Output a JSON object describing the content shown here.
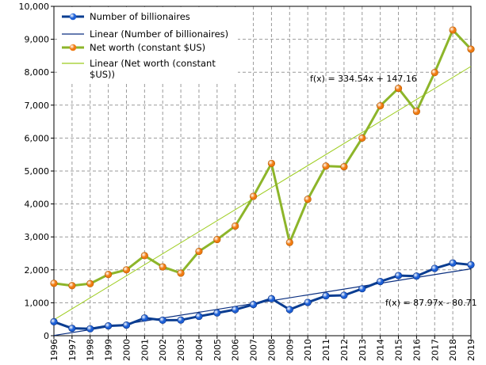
{
  "chart_data": {
    "type": "line",
    "x": [
      "1996",
      "1997",
      "1998",
      "1999",
      "2000",
      "2001",
      "2002",
      "2003",
      "2004",
      "2005",
      "2006",
      "2007",
      "2008",
      "2009",
      "2010",
      "2011",
      "2012",
      "2013",
      "2014",
      "2015",
      "2016",
      "2017",
      "2018",
      "2019"
    ],
    "ylim": [
      0,
      10000
    ],
    "yticks": [
      0,
      1000,
      2000,
      3000,
      4000,
      5000,
      6000,
      7000,
      8000,
      9000,
      10000
    ],
    "ytick_labels": [
      "0",
      "1,000",
      "2,000",
      "3,000",
      "4,000",
      "5,000",
      "6,000",
      "7,000",
      "8,000",
      "9,000",
      "10,000"
    ],
    "grid": "dashed",
    "legend_position": "top-left",
    "series": [
      {
        "name": "Number of billionaires",
        "color": "#0a3d91",
        "marker_color": "#1c5fd6",
        "values": [
          423,
          224,
          209,
          298,
          322,
          538,
          471,
          476,
          587,
          691,
          793,
          946,
          1125,
          793,
          1011,
          1210,
          1226,
          1426,
          1645,
          1826,
          1810,
          2043,
          2208,
          2153
        ]
      },
      {
        "name": "Net worth (constant $US)",
        "color": "#8db52a",
        "marker_color": "#f07a10",
        "values": [
          1590,
          1520,
          1580,
          1860,
          2000,
          2430,
          2090,
          1900,
          2560,
          2920,
          3330,
          4230,
          5230,
          2830,
          4140,
          5150,
          5130,
          6000,
          6980,
          7510,
          6810,
          7990,
          9280,
          8700
        ]
      }
    ],
    "trendlines": [
      {
        "name": "Linear (Number of billionaires)",
        "color": "#0a2f80",
        "slope": 87.97,
        "intercept": -80.71,
        "formula": "f(x) = 87.97x - 80.71"
      },
      {
        "name": "Linear (Net worth (constant $US))",
        "name_lines": [
          "Linear (Net worth (constant",
          "$US))"
        ],
        "color": "#9ccc1c",
        "slope": 334.54,
        "intercept": 147.16,
        "formula": "f(x) = 334.54x + 147.16"
      }
    ]
  }
}
